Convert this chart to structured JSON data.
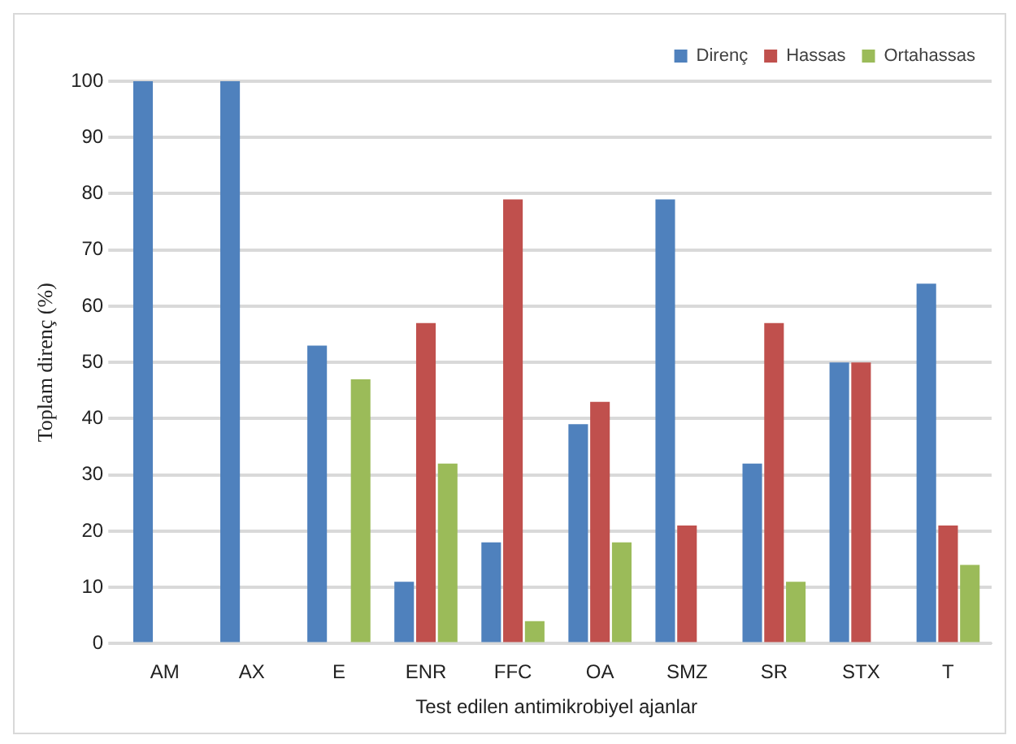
{
  "chart_data": {
    "type": "bar",
    "xlabel": "Test edilen antimikrobiyel ajanlar",
    "ylabel": "Toplam direnç (%)",
    "categories": [
      "AM",
      "AX",
      "E",
      "ENR",
      "FFC",
      "OA",
      "SMZ",
      "SR",
      "STX",
      "T"
    ],
    "series": [
      {
        "name": "Direnç",
        "color": "#4f81bd",
        "values": [
          100,
          100,
          53,
          11,
          18,
          39,
          79,
          32,
          50,
          64
        ]
      },
      {
        "name": "Hassas",
        "color": "#c0504d",
        "values": [
          0,
          0,
          0,
          57,
          79,
          43,
          21,
          57,
          50,
          21
        ]
      },
      {
        "name": "Ortahassas",
        "color": "#9bbb59",
        "values": [
          0,
          0,
          47,
          32,
          4,
          18,
          0,
          11,
          0,
          14
        ]
      }
    ],
    "ylim": [
      0,
      100
    ],
    "yticks": [
      0,
      10,
      20,
      30,
      40,
      50,
      60,
      70,
      80,
      90,
      100
    ],
    "grid": "y",
    "legend": "top right"
  }
}
